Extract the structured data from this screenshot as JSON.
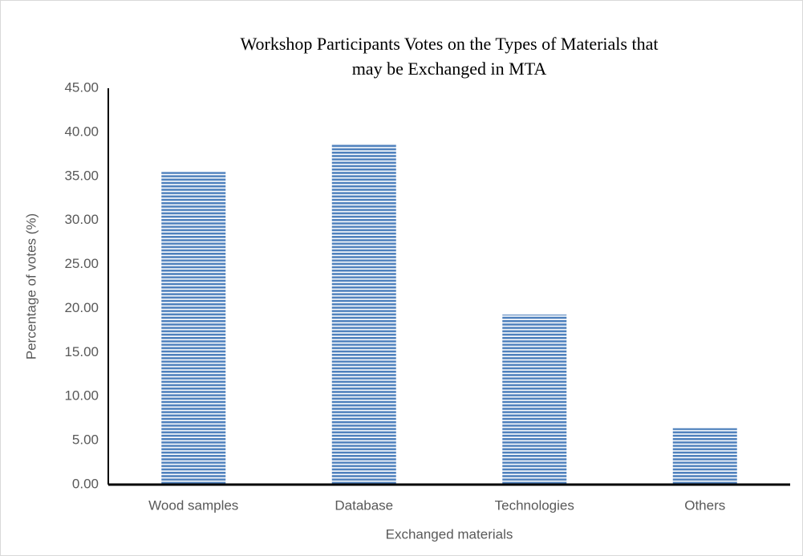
{
  "chart_data": {
    "type": "bar",
    "title": [
      "Workshop Participants Votes on the Types of Materials that",
      "may be Exchanged in MTA"
    ],
    "x_label": "Exchanged materials",
    "y_label": "Percentage of votes (%)",
    "categories": [
      "Wood samples",
      "Database",
      "Technologies",
      "Others"
    ],
    "values": [
      35.5,
      38.7,
      19.3,
      6.4
    ],
    "color": "#4f81bd",
    "ylim": [
      0,
      45
    ],
    "yticks": [
      {
        "value": 0,
        "label": "0.00"
      },
      {
        "value": 5,
        "label": "5.00"
      },
      {
        "value": 10,
        "label": "10.00"
      },
      {
        "value": 15,
        "label": "15.00"
      },
      {
        "value": 20,
        "label": "20.00"
      },
      {
        "value": 25,
        "label": "25.00"
      },
      {
        "value": 30,
        "label": "30.00"
      },
      {
        "value": 35,
        "label": "35.00"
      },
      {
        "value": 40,
        "label": "40.00"
      },
      {
        "value": 45,
        "label": "45.00"
      }
    ],
    "grid": false
  }
}
